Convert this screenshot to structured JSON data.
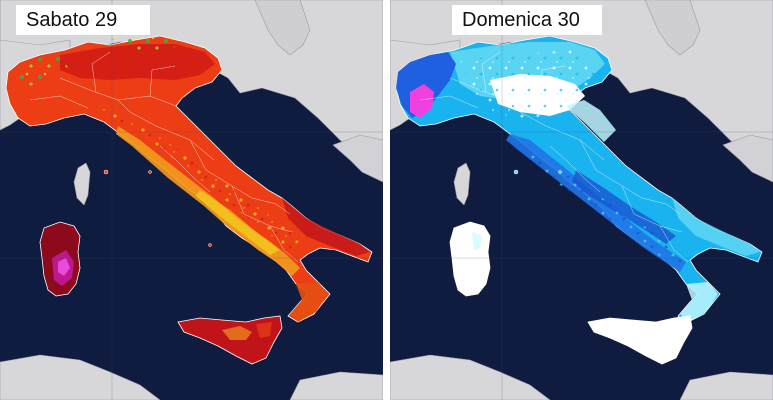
{
  "panels": [
    {
      "title": "Sabato 29",
      "color_scale": [
        "#1a9e2e",
        "#9fd32e",
        "#f2e51d",
        "#f4a01e",
        "#ec3d14",
        "#c0141a",
        "#8c0a1c",
        "#c21a9a",
        "#f053e8"
      ]
    },
    {
      "title": "Domenica 30",
      "color_scale": [
        "#ffffff",
        "#bff6ff",
        "#60d7f3",
        "#19b3ef",
        "#1f74e6",
        "#1a4fcf",
        "#f040e0"
      ]
    }
  ],
  "colors": {
    "sea": "#0f1c3f",
    "land_outside": "#d7d7d9",
    "border": "#ffffff"
  }
}
